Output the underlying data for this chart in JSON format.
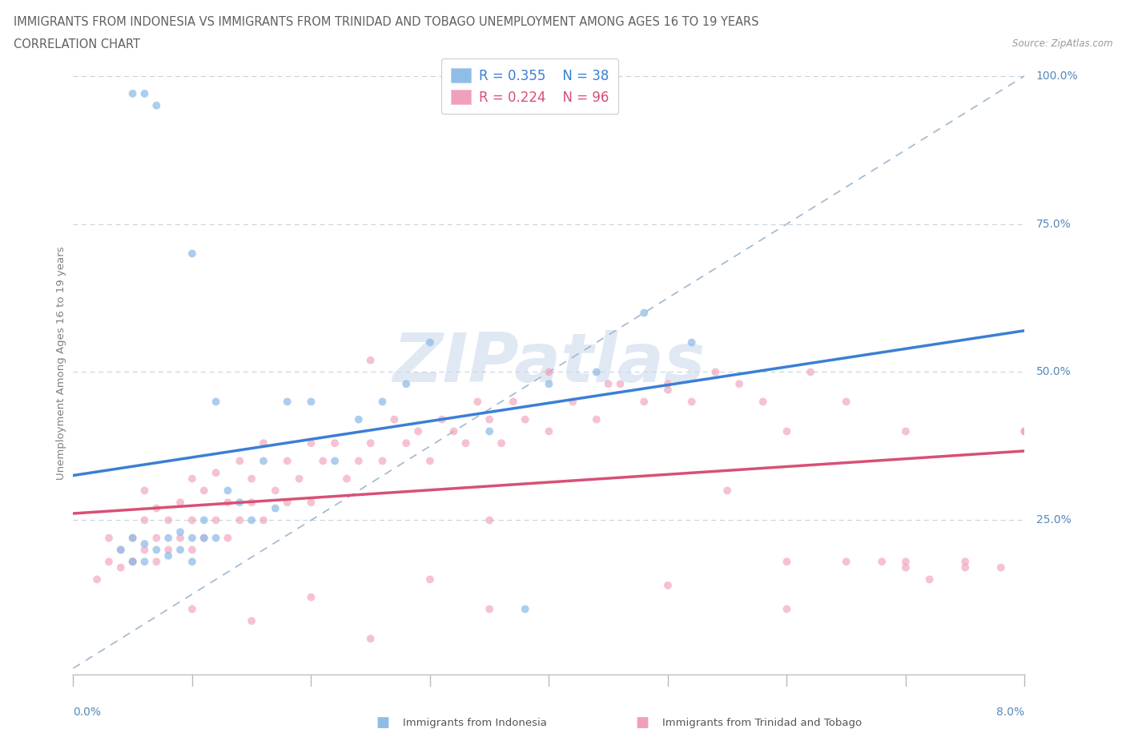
{
  "title_line1": "IMMIGRANTS FROM INDONESIA VS IMMIGRANTS FROM TRINIDAD AND TOBAGO UNEMPLOYMENT AMONG AGES 16 TO 19 YEARS",
  "title_line2": "CORRELATION CHART",
  "source": "Source: ZipAtlas.com",
  "color_indonesia": "#90bde8",
  "color_trinidad": "#f0a0bc",
  "color_reg_indonesia": "#3a7fd4",
  "color_reg_trinidad": "#d85075",
  "color_diagonal": "#a0b8d0",
  "color_grid": "#c8d4dc",
  "color_title": "#606060",
  "color_axis_nums": "#5588bb",
  "color_watermark": "#c8d8ea",
  "color_ylabel": "#808080",
  "r1": 0.355,
  "n1": 38,
  "r2": 0.224,
  "n2": 96,
  "xmin": 0.0,
  "xmax": 0.08,
  "ymin": 0.0,
  "ymax": 1.0,
  "yticks": [
    0.25,
    0.5,
    0.75,
    1.0
  ],
  "ytick_labels": [
    "25.0%",
    "50.0%",
    "75.0%",
    "100.0%"
  ],
  "indonesia_x": [
    0.004,
    0.005,
    0.005,
    0.005,
    0.006,
    0.006,
    0.006,
    0.007,
    0.007,
    0.008,
    0.008,
    0.009,
    0.009,
    0.01,
    0.01,
    0.01,
    0.011,
    0.011,
    0.012,
    0.012,
    0.013,
    0.014,
    0.015,
    0.016,
    0.017,
    0.018,
    0.02,
    0.022,
    0.024,
    0.026,
    0.028,
    0.03,
    0.035,
    0.038,
    0.04,
    0.044,
    0.048,
    0.052
  ],
  "indonesia_y": [
    0.2,
    0.22,
    0.18,
    0.97,
    0.21,
    0.18,
    0.97,
    0.2,
    0.95,
    0.22,
    0.19,
    0.23,
    0.2,
    0.22,
    0.18,
    0.7,
    0.25,
    0.22,
    0.45,
    0.22,
    0.3,
    0.28,
    0.25,
    0.35,
    0.27,
    0.45,
    0.45,
    0.35,
    0.42,
    0.45,
    0.48,
    0.55,
    0.4,
    0.1,
    0.48,
    0.5,
    0.6,
    0.55
  ],
  "trinidad_x": [
    0.002,
    0.003,
    0.003,
    0.004,
    0.004,
    0.005,
    0.005,
    0.006,
    0.006,
    0.006,
    0.007,
    0.007,
    0.007,
    0.008,
    0.008,
    0.009,
    0.009,
    0.01,
    0.01,
    0.01,
    0.011,
    0.011,
    0.012,
    0.012,
    0.013,
    0.013,
    0.014,
    0.014,
    0.015,
    0.015,
    0.016,
    0.016,
    0.017,
    0.018,
    0.018,
    0.019,
    0.02,
    0.02,
    0.021,
    0.022,
    0.023,
    0.024,
    0.025,
    0.026,
    0.027,
    0.028,
    0.029,
    0.03,
    0.031,
    0.032,
    0.033,
    0.034,
    0.035,
    0.036,
    0.037,
    0.038,
    0.04,
    0.042,
    0.044,
    0.046,
    0.048,
    0.05,
    0.052,
    0.054,
    0.056,
    0.058,
    0.06,
    0.062,
    0.065,
    0.068,
    0.07,
    0.072,
    0.075,
    0.078,
    0.08,
    0.04,
    0.025,
    0.035,
    0.05,
    0.06,
    0.07,
    0.015,
    0.02,
    0.03,
    0.045,
    0.01,
    0.055,
    0.065,
    0.075,
    0.005,
    0.025,
    0.035,
    0.05,
    0.06,
    0.07,
    0.08
  ],
  "trinidad_y": [
    0.15,
    0.18,
    0.22,
    0.17,
    0.2,
    0.18,
    0.22,
    0.2,
    0.25,
    0.3,
    0.18,
    0.22,
    0.27,
    0.2,
    0.25,
    0.22,
    0.28,
    0.2,
    0.25,
    0.32,
    0.22,
    0.3,
    0.25,
    0.33,
    0.22,
    0.28,
    0.25,
    0.35,
    0.28,
    0.32,
    0.25,
    0.38,
    0.3,
    0.28,
    0.35,
    0.32,
    0.28,
    0.38,
    0.35,
    0.38,
    0.32,
    0.35,
    0.38,
    0.35,
    0.42,
    0.38,
    0.4,
    0.35,
    0.42,
    0.4,
    0.38,
    0.45,
    0.42,
    0.38,
    0.45,
    0.42,
    0.4,
    0.45,
    0.42,
    0.48,
    0.45,
    0.48,
    0.45,
    0.5,
    0.48,
    0.45,
    0.18,
    0.5,
    0.45,
    0.18,
    0.17,
    0.15,
    0.18,
    0.17,
    0.4,
    0.5,
    0.05,
    0.25,
    0.14,
    0.4,
    0.18,
    0.08,
    0.12,
    0.15,
    0.48,
    0.1,
    0.3,
    0.18,
    0.17,
    0.18,
    0.52,
    0.1,
    0.47,
    0.1,
    0.4,
    0.4
  ]
}
